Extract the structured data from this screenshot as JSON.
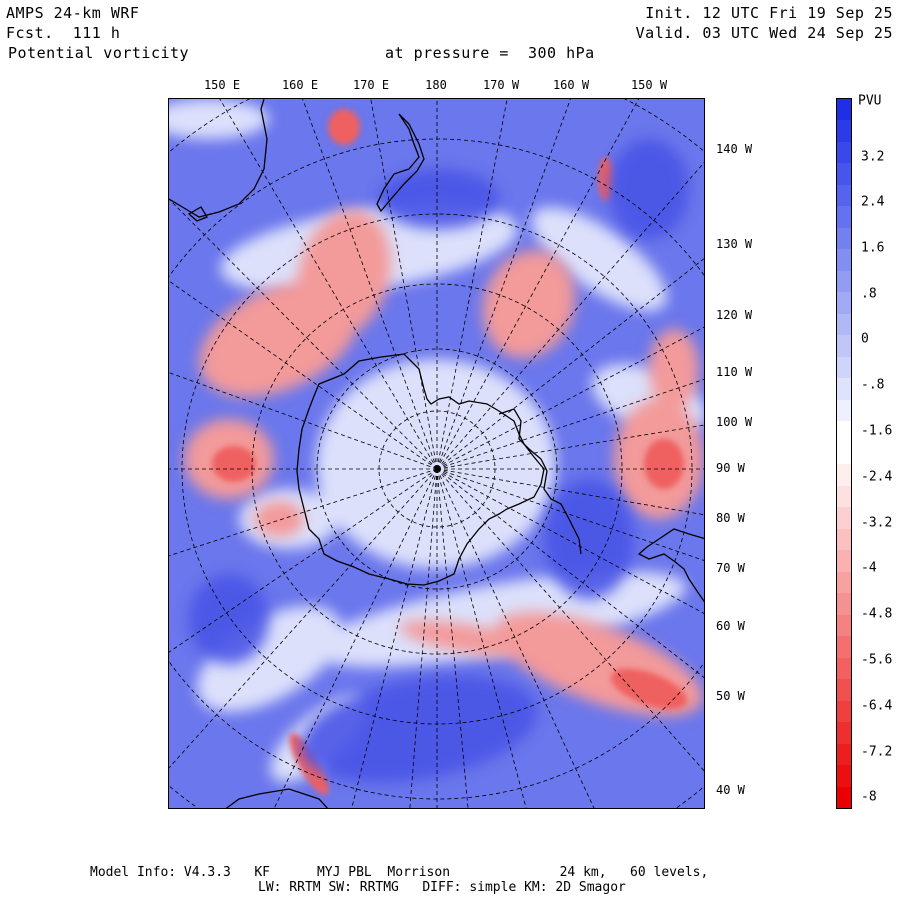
{
  "header": {
    "model": "AMPS 24-km WRF",
    "forecast": "Fcst.  111 h",
    "field": "Potential vorticity",
    "level": "at pressure =  300 hPa",
    "init": "Init. 12 UTC Fri 19 Sep 25",
    "valid": "Valid. 03 UTC Wed 24 Sep 25"
  },
  "map": {
    "top_longitudes": [
      "150 E",
      "160 E",
      "170 E",
      "180",
      "170 W",
      "160 W",
      "150 W"
    ],
    "right_longitudes": [
      "140 W",
      "130 W",
      "120 W",
      "110 W",
      "100 W",
      "90 W",
      "80 W",
      "70 W",
      "60 W",
      "50 W",
      "40 W"
    ]
  },
  "colorbar": {
    "unit": "PVU",
    "labels": [
      "3.2",
      "2.4",
      "1.6",
      ".8",
      "0",
      "-.8",
      "-1.6",
      "-2.4",
      "-3.2",
      "-4",
      "-4.8",
      "-5.6",
      "-6.4",
      "-7.2",
      "-8"
    ],
    "colors": [
      "#1f2fe6",
      "#2b3be8",
      "#3848ea",
      "#4655ec",
      "#5563ee",
      "#6472ef",
      "#7380f0",
      "#828ef2",
      "#919cf3",
      "#a1aaf5",
      "#b0b8f7",
      "#c0c6f8",
      "#cfd4fa",
      "#dfe2fc",
      "#eef0fe",
      "#ffffff",
      "#ffffff",
      "#feeeee",
      "#fde0e0",
      "#fcd0d0",
      "#fbc1c1",
      "#f9b1b1",
      "#f8a1a1",
      "#f69191",
      "#f58181",
      "#f47070",
      "#f26060",
      "#f15050",
      "#ef4040",
      "#ee2f2f",
      "#ec1f1f",
      "#eb0f0f",
      "#ea0000"
    ]
  },
  "footer": {
    "line1": "Model Info: V4.3.3   KF      MYJ PBL  Morrison              24 km,   60 levels,",
    "line2": "LW: RRTM SW: RRTMG   DIFF: simple KM: 2D Smagor"
  }
}
